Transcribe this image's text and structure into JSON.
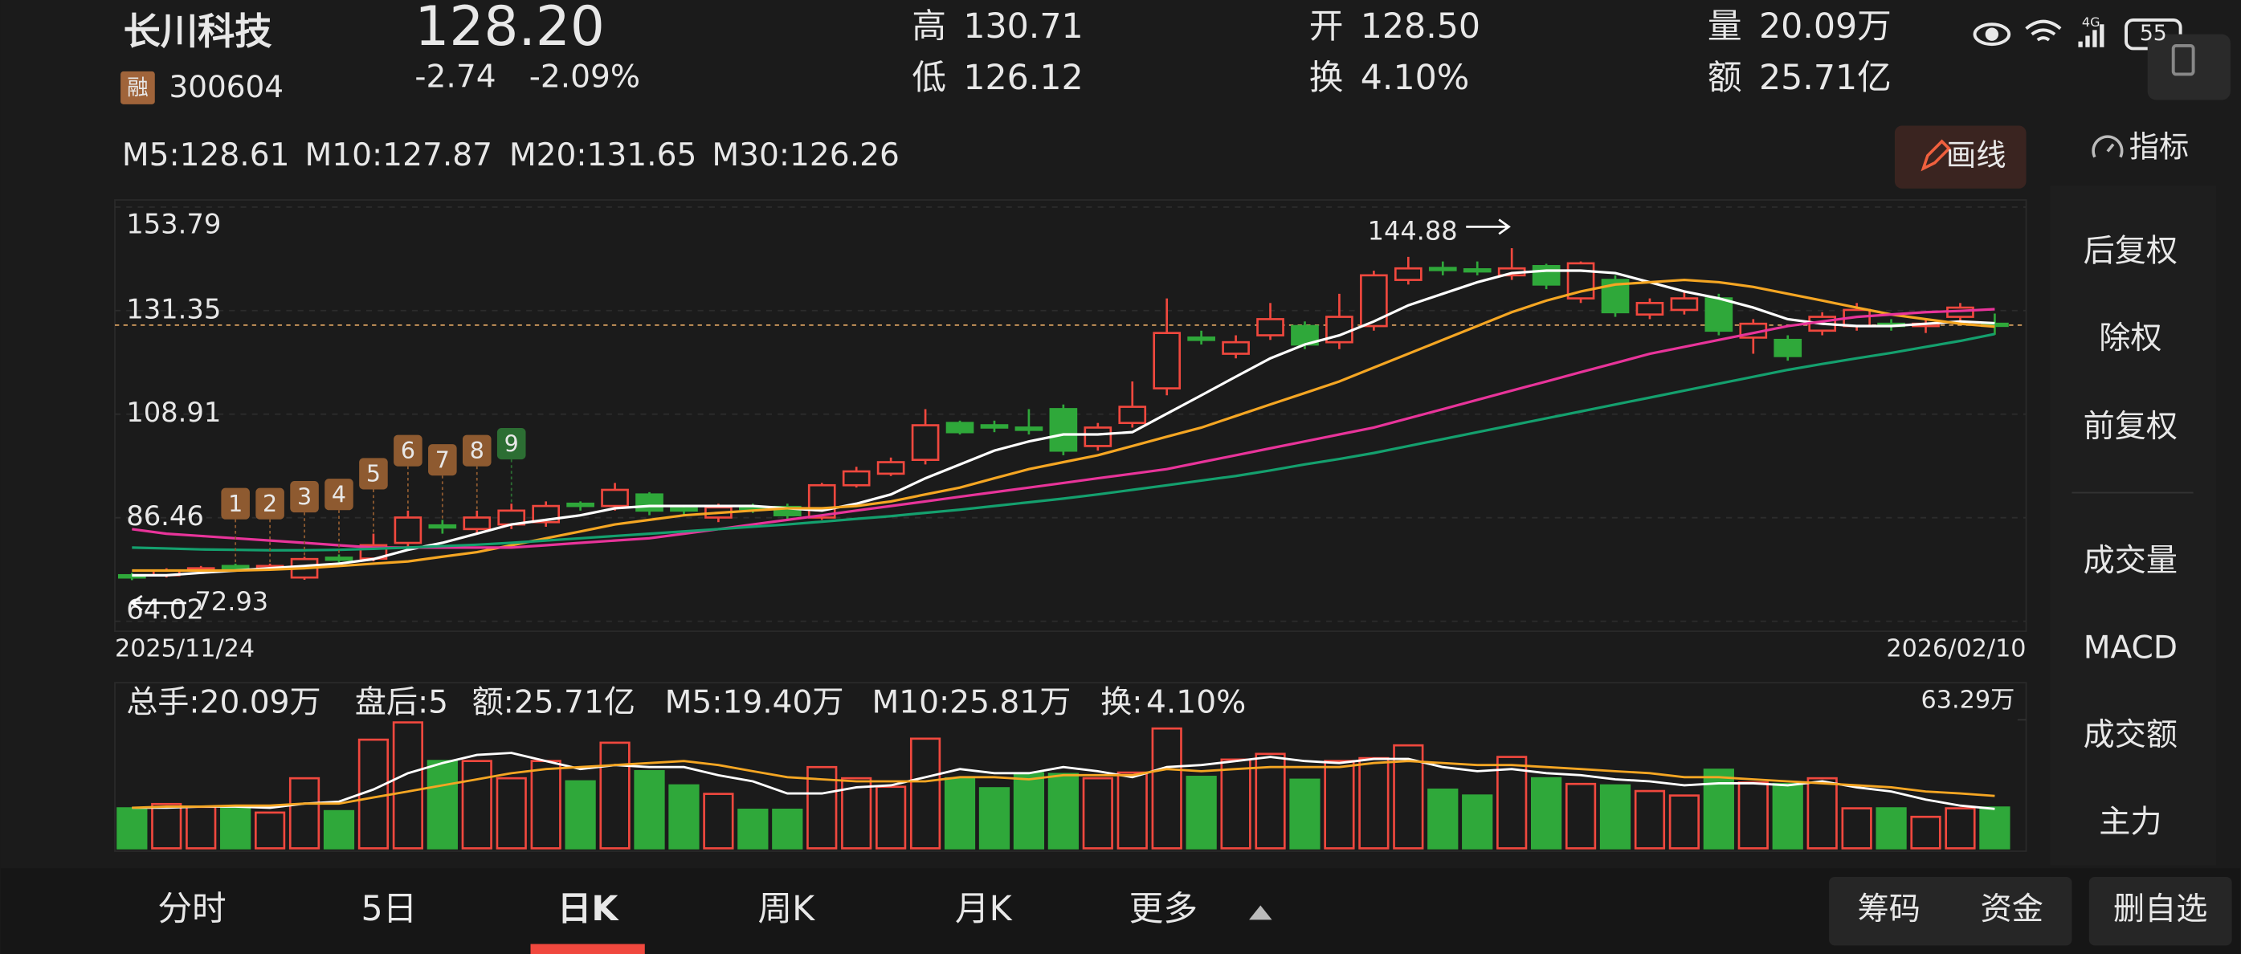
{
  "status": {
    "network": "4G",
    "battery": "55"
  },
  "header": {
    "name": "长川科技",
    "tag": "融",
    "code": "300604",
    "price": "128.20",
    "change": "-2.74",
    "change_pct": "-2.09%",
    "stats": [
      {
        "label": "高",
        "value": "130.71",
        "color": "#2fb344"
      },
      {
        "label": "低",
        "value": "126.12",
        "color": "#2fb344"
      },
      {
        "label": "开",
        "value": "128.50",
        "color": "#2fb344"
      },
      {
        "label": "换",
        "value": "4.10%",
        "color": "#e8e8e8"
      },
      {
        "label": "量",
        "value": "20.09万",
        "color": "#e8e8e8"
      },
      {
        "label": "额",
        "value": "25.71亿",
        "color": "#e8e8e8"
      }
    ]
  },
  "draw_button": "画线",
  "indicator_button": "指标",
  "side_menu": [
    {
      "label": "后复权",
      "active": false
    },
    {
      "label": "除权",
      "active": false
    },
    {
      "label": "前复权",
      "active": true
    },
    {
      "label": "成交量",
      "active": true
    },
    {
      "label": "MACD",
      "active": false
    },
    {
      "label": "成交额",
      "active": false
    },
    {
      "label": "主力",
      "active": false
    }
  ],
  "chart_data": {
    "type": "candlestick",
    "x_start": "2025/11/24",
    "x_end": "2026/02/10",
    "open": [
      74,
      74,
      75,
      76,
      75.5,
      73.5,
      77.8,
      77.6,
      81,
      84.8,
      84,
      85,
      85.5,
      89.5,
      89,
      91.5,
      88.5,
      86.5,
      88.8,
      88.8,
      86.5,
      93.5,
      96,
      99,
      107,
      106.5,
      106,
      110,
      102,
      107,
      114.5,
      125.5,
      122,
      126,
      128,
      124.5,
      128,
      138,
      140.6,
      140.3,
      139,
      141,
      134,
      138,
      130.5,
      131.5,
      134,
      125.5,
      125,
      127,
      128,
      128.5,
      128,
      130,
      128.5
    ],
    "high": [
      74.5,
      75.5,
      76,
      76.5,
      76.5,
      78,
      78.5,
      83,
      88,
      86,
      88,
      89.5,
      90,
      90,
      94,
      92,
      89,
      89.5,
      89.5,
      89.5,
      94,
      97.5,
      99.5,
      110,
      107.5,
      107.5,
      110,
      111,
      107,
      116,
      134,
      127,
      126,
      133,
      129,
      135,
      140,
      143,
      142,
      142,
      144.88,
      141.5,
      142,
      139,
      134,
      135.5,
      135,
      129.5,
      126,
      131,
      133,
      129.5,
      129.5,
      133,
      130.71
    ],
    "low": [
      72.93,
      73.5,
      74.5,
      75,
      75,
      73,
      76.5,
      77,
      80,
      83,
      83,
      84,
      84.5,
      88,
      88,
      87,
      87,
      85.5,
      87.5,
      86,
      86,
      93,
      95.5,
      98,
      104.5,
      105,
      104.5,
      100,
      101,
      106,
      113,
      124,
      121,
      125,
      123,
      123,
      127,
      137,
      139,
      139,
      138,
      136,
      133,
      130,
      129.5,
      130.5,
      126,
      122,
      120.5,
      126,
      127,
      127,
      126.5,
      129,
      126.12
    ],
    "close": [
      73.5,
      75,
      75.5,
      75.5,
      76,
      77.5,
      77.5,
      80.5,
      86.5,
      84.5,
      86.5,
      88,
      89,
      89,
      92.5,
      88,
      88,
      88.7,
      88.5,
      87,
      93.5,
      96.5,
      98.5,
      106.5,
      105,
      106,
      105.5,
      101,
      106,
      110.5,
      126.5,
      125,
      124.5,
      129.5,
      124,
      130,
      139,
      140.5,
      140.2,
      140,
      140.5,
      137,
      141.6,
      131,
      133,
      134,
      127,
      128.5,
      121.5,
      130,
      131.5,
      128,
      128.5,
      132,
      128.2
    ],
    "up_color": "#f0483e",
    "down_color": "#2fa83a",
    "ylim": [
      64.02,
      153.79
    ],
    "yticks": [
      153.79,
      131.35,
      108.91,
      86.46,
      64.02
    ],
    "grid": true,
    "series": [
      {
        "name": "M5:128.61",
        "color": "#ffffff",
        "values": [
          74,
          74,
          74.5,
          75,
          75.5,
          76,
          76.5,
          77.5,
          79.5,
          81,
          83,
          85,
          86,
          87,
          88.5,
          89,
          89,
          89,
          89,
          88.5,
          88,
          89.5,
          91.5,
          95,
          98,
          101,
          103,
          104.5,
          104.5,
          105,
          109,
          113,
          117,
          121,
          124,
          126,
          129,
          132.5,
          135,
          137.5,
          139.5,
          140,
          140,
          139.5,
          137.5,
          135.5,
          134,
          132,
          129.5,
          128.5,
          128,
          128,
          128.5,
          129,
          128.61
        ]
      },
      {
        "name": "M10:127.87",
        "color": "#f5a623",
        "values": [
          75,
          75,
          75,
          75,
          75.2,
          75.5,
          76,
          76.5,
          77,
          78,
          79,
          80.5,
          82,
          83.5,
          85,
          86,
          87,
          87.5,
          88,
          88.5,
          88.5,
          89,
          90,
          91.5,
          93,
          95,
          97,
          98.5,
          100,
          102,
          104,
          106,
          108.5,
          111,
          113.5,
          116,
          119,
          122,
          125,
          128,
          131,
          133.5,
          135.5,
          137,
          137.5,
          138,
          137.5,
          136.5,
          135,
          133.5,
          132,
          130.5,
          129.5,
          128.5,
          127.87
        ]
      },
      {
        "name": "M20:131.65",
        "color": "#e8349a",
        "values": [
          84,
          83,
          82.5,
          82,
          81.5,
          81,
          80.5,
          80,
          80,
          80,
          80,
          80,
          80.5,
          81,
          81.5,
          82,
          83,
          84,
          85,
          86,
          87,
          88,
          89,
          90,
          91,
          92,
          93,
          94,
          95,
          96,
          97,
          98.5,
          100,
          101.5,
          103,
          104.5,
          106,
          108,
          110,
          112,
          114,
          116,
          118,
          120,
          122,
          123.5,
          125,
          126.5,
          128,
          129,
          130,
          130.5,
          131,
          131.3,
          131.65
        ]
      },
      {
        "name": "M30:126.26",
        "color": "#14a06e",
        "values": [
          80,
          79.8,
          79.6,
          79.5,
          79.4,
          79.4,
          79.5,
          79.7,
          80,
          80.3,
          80.6,
          81,
          81.5,
          82,
          82.5,
          83,
          83.5,
          84,
          84.5,
          85,
          85.6,
          86.2,
          86.8,
          87.5,
          88.2,
          89,
          89.8,
          90.6,
          91.5,
          92.5,
          93.5,
          94.5,
          95.5,
          96.7,
          98,
          99.2,
          100.5,
          102,
          103.5,
          105,
          106.5,
          108,
          109.5,
          111,
          112.5,
          114,
          115.5,
          117,
          118.5,
          119.8,
          121,
          122.2,
          123.5,
          124.8,
          126.26
        ]
      }
    ],
    "annotations": {
      "high": 144.88,
      "low": 72.93
    },
    "markers": [
      {
        "label": "1",
        "color": "#8e5a30"
      },
      {
        "label": "2",
        "color": "#8e5a30"
      },
      {
        "label": "3",
        "color": "#8e5a30"
      },
      {
        "label": "4",
        "color": "#8e5a30"
      },
      {
        "label": "5",
        "color": "#8e5a30"
      },
      {
        "label": "6",
        "color": "#8e5a30"
      },
      {
        "label": "7",
        "color": "#8e5a30"
      },
      {
        "label": "8",
        "color": "#8e5a30"
      },
      {
        "label": "9",
        "color": "#2c6e33"
      }
    ]
  },
  "volume_chart": {
    "type": "bar",
    "legend": [
      {
        "text": "总手:20.09万",
        "color": "#2fb344"
      },
      {
        "text": "盘后:5",
        "color": "#e8e8e8"
      },
      {
        "text": "额:25.71亿",
        "color": "#2fb344"
      },
      {
        "text": "M5:19.40万",
        "color": "#ffffff"
      },
      {
        "text": "M10:25.81万",
        "color": "#f5a623"
      },
      {
        "text": "换:",
        "color": "#e8e8e8"
      },
      {
        "text": "4.10%",
        "color": "#3a9ff0"
      }
    ],
    "values": [
      19.7,
      21.8,
      20.4,
      19.7,
      17.6,
      34.5,
      18.3,
      53.5,
      62,
      43,
      43,
      34.5,
      43,
      33,
      52,
      38,
      31,
      26.8,
      19,
      19,
      40,
      34.5,
      30.3,
      54,
      34.5,
      29.6,
      37,
      36.6,
      34.5,
      37.3,
      59,
      35.2,
      43.7,
      46.5,
      33.8,
      43,
      44.4,
      50.7,
      28.9,
      26,
      45,
      34.5,
      31.7,
      31,
      28.2,
      26,
      38.7,
      32.4,
      31.7,
      34.5,
      19.7,
      19.7,
      15.5,
      19.7,
      20.09
    ],
    "ylim": [
      0,
      63.29
    ],
    "yticks": [
      {
        "value": 63.29,
        "label": "63.29万"
      }
    ],
    "series": [
      {
        "color": "#ffffff",
        "values": [
          20,
          20,
          20.5,
          20.5,
          20,
          22,
          23,
          29,
          37,
          42,
          46,
          47,
          43,
          39,
          41,
          40,
          40,
          36,
          33,
          27,
          27,
          30,
          31,
          35,
          39,
          37,
          37,
          40,
          38,
          35,
          40,
          41,
          43,
          45,
          43,
          42,
          44,
          44,
          40,
          38,
          39,
          37,
          36,
          34,
          33,
          31,
          32,
          32,
          31,
          33,
          30,
          28,
          24,
          21,
          19.4
        ]
      },
      {
        "color": "#f5a623",
        "values": [
          20,
          20.5,
          20.5,
          21,
          21,
          22,
          22,
          25,
          28,
          31,
          34,
          37,
          39,
          40,
          41,
          42,
          43,
          41,
          38,
          35,
          34,
          33,
          33,
          33,
          35,
          35,
          34,
          36,
          36,
          36,
          39,
          38,
          39,
          40,
          40,
          40,
          42,
          43,
          42,
          41,
          41,
          40,
          39,
          38,
          37,
          35,
          35,
          34,
          33,
          32,
          31,
          30,
          28,
          27,
          25.81
        ]
      }
    ]
  },
  "tabs": [
    {
      "label": "分时",
      "active": false
    },
    {
      "label": "5日",
      "active": false
    },
    {
      "label": "日K",
      "active": true
    },
    {
      "label": "周K",
      "active": false
    },
    {
      "label": "月K",
      "active": false
    },
    {
      "label": "更多",
      "active": false
    }
  ],
  "tools": [
    "筹码",
    "资金",
    "删自选"
  ]
}
